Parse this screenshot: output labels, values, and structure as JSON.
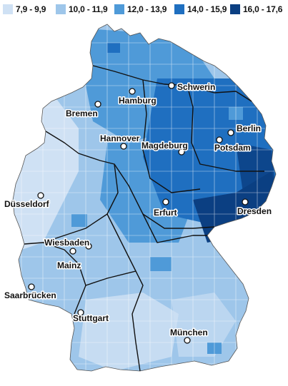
{
  "legend": {
    "items": [
      {
        "label": "7,9 - 9,9",
        "color": "#cfe1f4"
      },
      {
        "label": "10,0 - 11,9",
        "color": "#9ec6ea"
      },
      {
        "label": "12,0 - 13,9",
        "color": "#4f9ad8"
      },
      {
        "label": "14,0 - 15,9",
        "color": "#1f6fc0"
      },
      {
        "label": "16,0 - 17,6",
        "color": "#0b3f82"
      }
    ]
  },
  "cities": [
    {
      "id": "schwerin",
      "name": "Schwerin"
    },
    {
      "id": "hamburg",
      "name": "Hamburg"
    },
    {
      "id": "bremen",
      "name": "Bremen"
    },
    {
      "id": "berlin",
      "name": "Berlin"
    },
    {
      "id": "potsdam",
      "name": "Potsdam"
    },
    {
      "id": "hannover",
      "name": "Hannover"
    },
    {
      "id": "magdeburg",
      "name": "Magdeburg"
    },
    {
      "id": "duesseldorf",
      "name": "Düsseldorf"
    },
    {
      "id": "erfurt",
      "name": "Erfurt"
    },
    {
      "id": "dresden",
      "name": "Dresden"
    },
    {
      "id": "wiesbaden",
      "name": "Wiesbaden"
    },
    {
      "id": "mainz",
      "name": "Mainz"
    },
    {
      "id": "saarbruecken",
      "name": "Saarbrücken"
    },
    {
      "id": "stuttgart",
      "name": "Stuttgart"
    },
    {
      "id": "muenchen",
      "name": "München"
    }
  ]
}
